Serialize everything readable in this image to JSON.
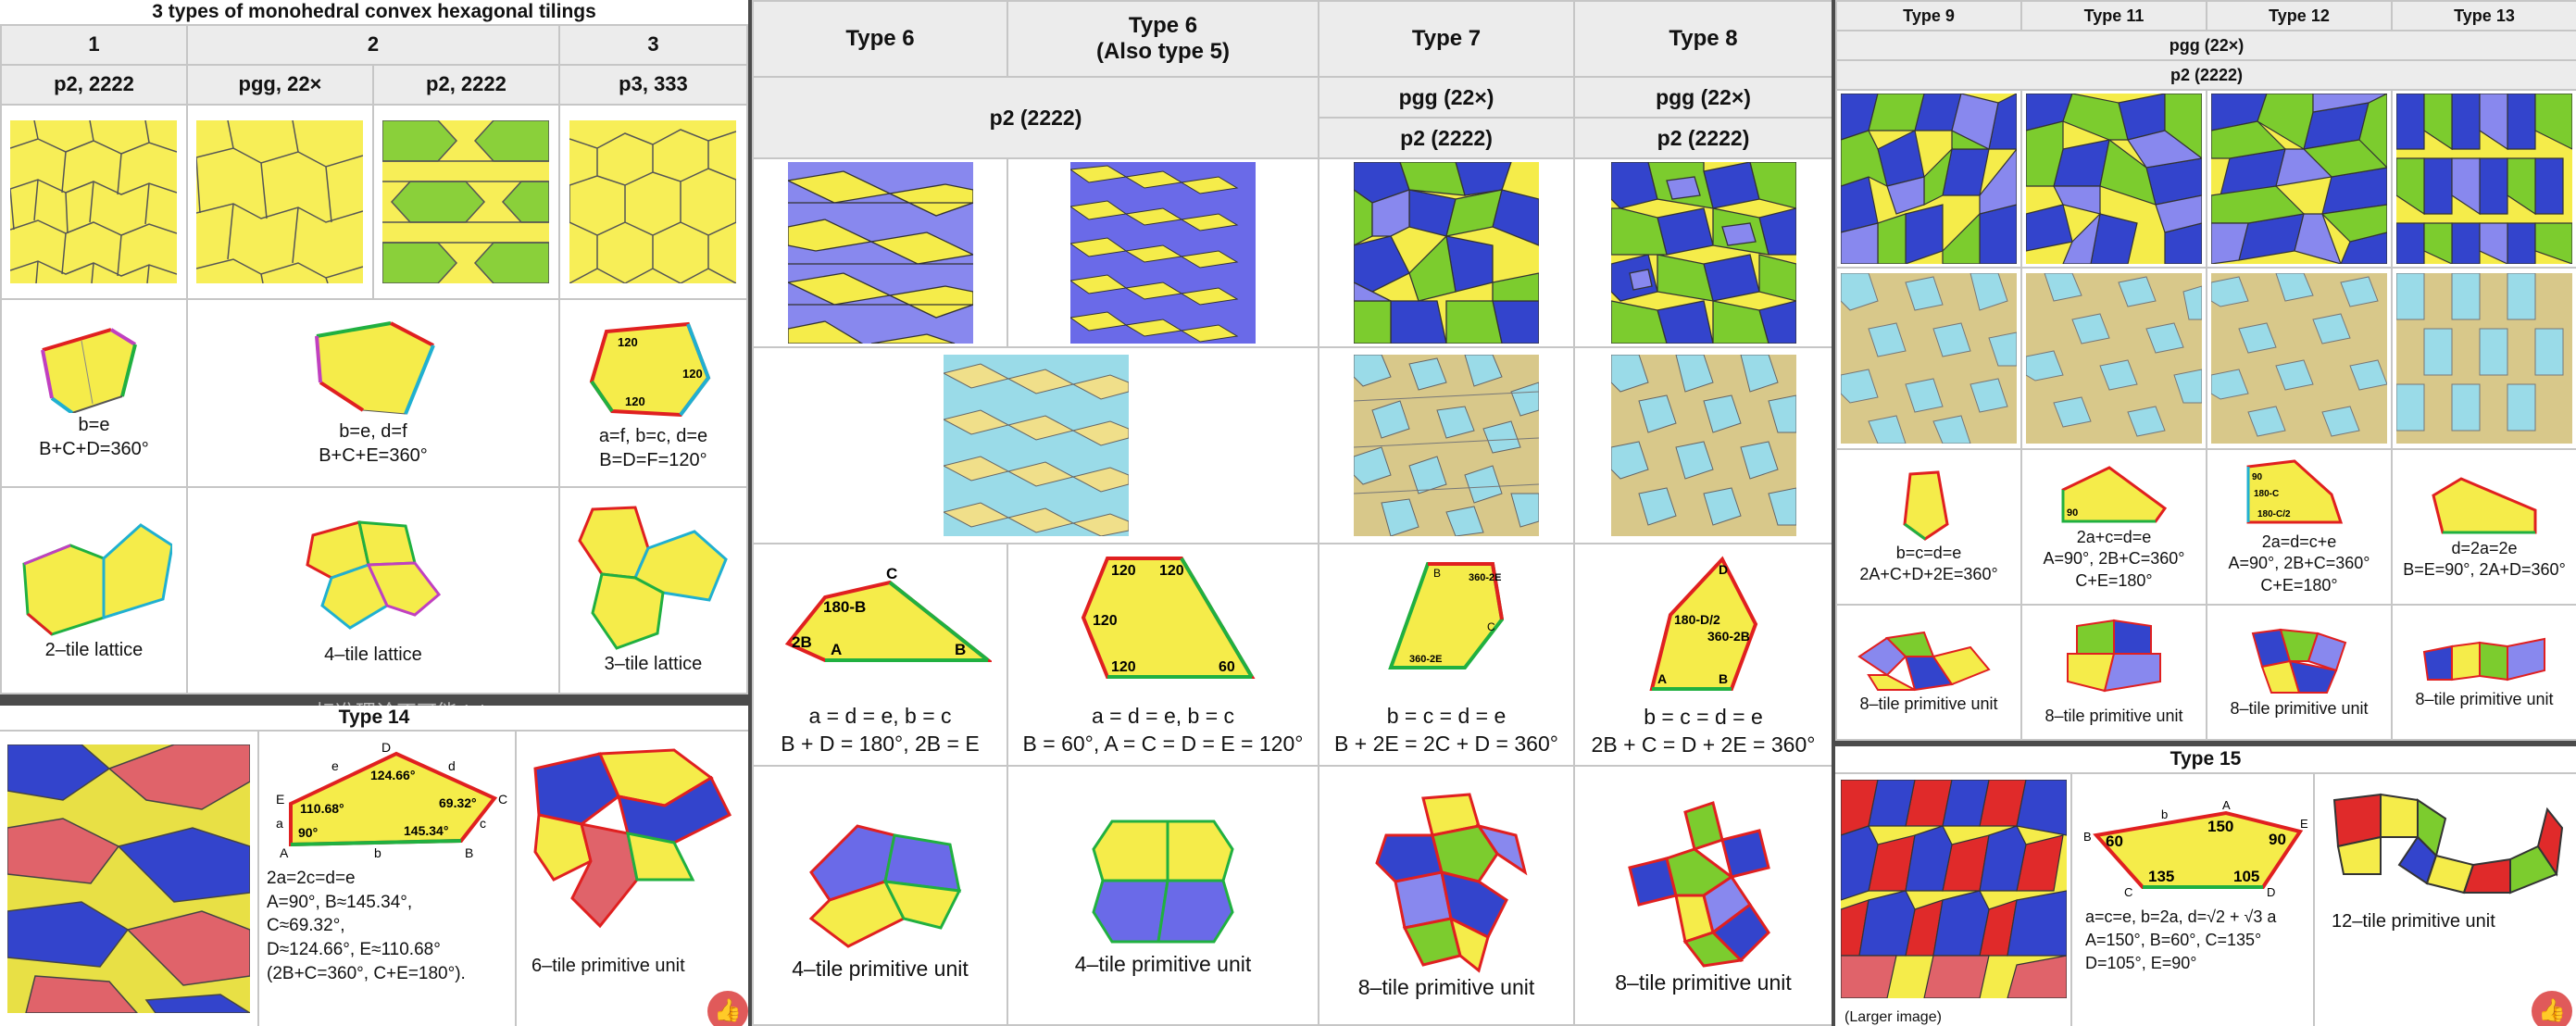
{
  "p1": {
    "title": "3 types of monohedral convex hexagonal tilings",
    "h1": [
      "1",
      "2",
      "3"
    ],
    "h2": [
      "p2, 2222",
      "pgg, 22×",
      "p2, 2222",
      "p3, 333"
    ],
    "cap": [
      [
        "b=e",
        "B+C+D=360°"
      ],
      [
        "b=e, d=f",
        "B+C+E=360°"
      ],
      [
        "a=f, b=c, d=e",
        "B=D=F=120°"
      ]
    ],
    "angles3": [
      "120",
      "120",
      "120"
    ],
    "lat": [
      "2–tile lattice",
      "4–tile lattice",
      "3–tile lattice"
    ]
  },
  "p2": {
    "types": [
      "Type 6",
      "Type 6",
      "(Also type 5)",
      "Type 7",
      "Type 8"
    ],
    "groups": [
      "p2 (2222)",
      "pgg (22×)",
      "p2 (2222)",
      "pgg (22×)",
      "p2 (2222)"
    ],
    "labels": {
      "t6a": [
        "180-B",
        "C",
        "2B",
        "A",
        "B"
      ],
      "t6b": [
        "120",
        "120",
        "120",
        "120",
        "60"
      ],
      "t7": [
        "B",
        "360-2E",
        "C",
        "360-2E"
      ],
      "t8": [
        "D",
        "180-D/2",
        "360-2B",
        "A",
        "B"
      ]
    },
    "cap": [
      [
        "a = d = e, b = c",
        "B + D = 180°, 2B = E"
      ],
      [
        "a = d = e, b = c",
        "B = 60°, A = C = D = E = 120°"
      ],
      [
        "b = c = d = e",
        "B + 2E = 2C + D = 360°"
      ],
      [
        "b = c = d = e",
        "2B + C = D + 2E = 360°"
      ]
    ],
    "units": [
      "4–tile primitive unit",
      "4–tile primitive unit",
      "8–tile primitive unit",
      "8–tile primitive unit"
    ]
  },
  "p3": {
    "types": [
      "Type 9",
      "Type 11",
      "Type 12",
      "Type 13"
    ],
    "groups": [
      "pgg (22×)",
      "p2 (2222)"
    ],
    "labels": [
      "90",
      "90",
      "180-C",
      "180-C/2"
    ],
    "cap": [
      [
        "b=c=d=e",
        "2A+C+D+2E=360°"
      ],
      [
        "2a+c=d=e",
        "A=90°, 2B+C=360°",
        "C+E=180°"
      ],
      [
        "2a=d=c+e",
        "A=90°, 2B+C=360°",
        "C+E=180°"
      ],
      [
        "d=2a=2e",
        "B=E=90°, 2A+D=360°"
      ]
    ],
    "units": [
      "8–tile primitive unit",
      "8–tile primitive unit",
      "8–tile primitive unit",
      "8–tile primitive unit"
    ]
  },
  "p4": {
    "title": "Type 14",
    "angles": [
      "124.66°",
      "110.68°",
      "69.32°",
      "90°",
      "145.34°"
    ],
    "letters": [
      "D",
      "e",
      "d",
      "E",
      "C",
      "a",
      "c",
      "A",
      "b",
      "B"
    ],
    "cap": [
      "2a=2c=d=e",
      "A=90°, B≈145.34°,",
      "C≈69.32°,",
      "D≈124.66°, E≈110.68°",
      "(2B+C=360°, C+E=180°)."
    ],
    "unit": "6–tile primitive unit"
  },
  "p5": {
    "title": "Type 15",
    "angles": [
      "150",
      "90",
      "60",
      "135",
      "105"
    ],
    "letters": [
      "A",
      "b",
      "E",
      "B",
      "C",
      "D"
    ],
    "cap": [
      "a=c=e, b=2a, d=√2 + √3 a",
      "A=150°, B=60°, C=135°",
      "D=105°, E=90°"
    ],
    "larger": "(Larger image)",
    "unit": "12–tile primitive unit"
  },
  "watermark": "标准理论不可能del",
  "like_icon": "👍",
  "colors": {
    "yellow": "#f5ec4a",
    "blue": "#3344cc",
    "purple": "#8888ee",
    "green": "#7ccc2e",
    "red": "#e0636a",
    "tan": "#d8c88a",
    "cyan": "#9adbe8",
    "edge_red": "#e02020",
    "edge_green": "#20b040",
    "edge_cyan": "#20b0d0",
    "edge_magenta": "#c040c0"
  }
}
